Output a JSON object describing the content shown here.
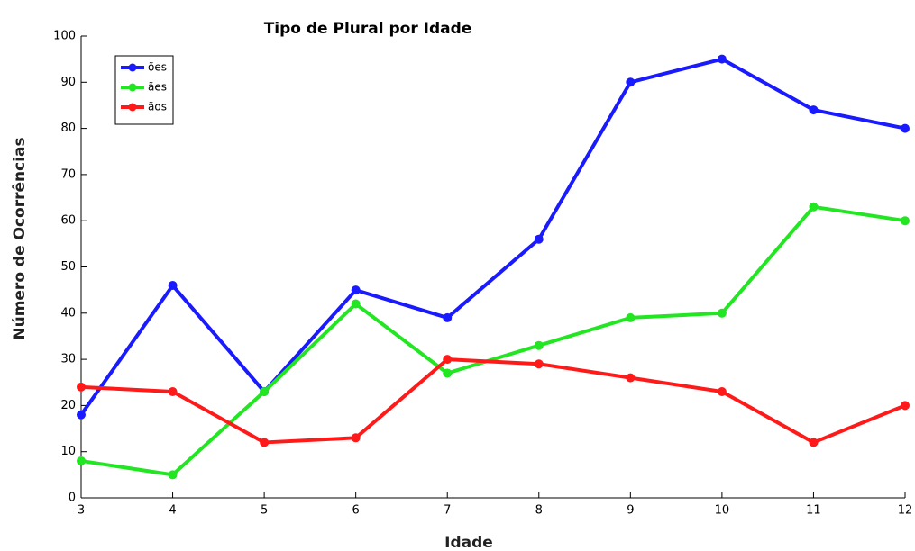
{
  "chart_data": {
    "type": "line",
    "title": "Tipo de Plural por Idade",
    "x_label": "Idade",
    "y_label": "Número de Ocorrências",
    "x": [
      3,
      4,
      5,
      6,
      7,
      8,
      9,
      10,
      11,
      12
    ],
    "series": [
      {
        "name": "ões",
        "color": "#1a1aff",
        "values": [
          18,
          46,
          23,
          45,
          39,
          56,
          90,
          95,
          84,
          80
        ]
      },
      {
        "name": "ães",
        "color": "#22e622",
        "values": [
          8,
          5,
          23,
          42,
          27,
          33,
          39,
          40,
          63,
          60
        ]
      },
      {
        "name": "ãos",
        "color": "#ff1a1a",
        "values": [
          24,
          23,
          12,
          13,
          30,
          29,
          26,
          23,
          12,
          20
        ]
      }
    ],
    "xlim": [
      3,
      12
    ],
    "xticks": [
      3,
      4,
      5,
      6,
      7,
      8,
      9,
      10,
      11,
      12
    ],
    "ylim": [
      0,
      100
    ],
    "yticks": [
      0,
      10,
      20,
      30,
      40,
      50,
      60,
      70,
      80,
      90,
      100
    ],
    "grid": false,
    "legend": "upper left"
  }
}
